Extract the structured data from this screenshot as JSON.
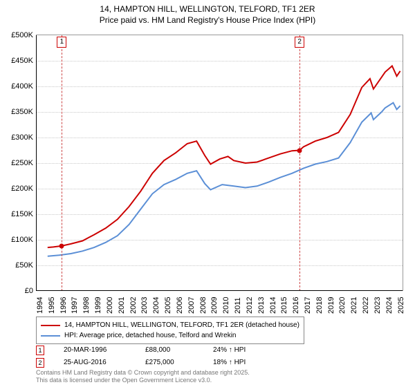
{
  "title_line1": "14, HAMPTON HILL, WELLINGTON, TELFORD, TF1 2ER",
  "title_line2": "Price paid vs. HM Land Registry's House Price Index (HPI)",
  "chart": {
    "type": "line",
    "background_color": "#ffffff",
    "grid_color": "#c8c8c8",
    "axis_color": "#000000",
    "x_years": [
      1994,
      1995,
      1996,
      1997,
      1998,
      1999,
      2000,
      2001,
      2002,
      2003,
      2004,
      2005,
      2006,
      2007,
      2008,
      2009,
      2010,
      2011,
      2012,
      2013,
      2014,
      2015,
      2016,
      2017,
      2018,
      2019,
      2020,
      2021,
      2022,
      2023,
      2024,
      2025
    ],
    "xlim": [
      1994,
      2025.5
    ],
    "ylim": [
      0,
      500000
    ],
    "ytick_step": 50000,
    "ytick_labels": [
      "£0",
      "£50K",
      "£100K",
      "£150K",
      "£200K",
      "£250K",
      "£300K",
      "£350K",
      "£400K",
      "£450K",
      "£500K"
    ],
    "series": [
      {
        "name": "price_paid",
        "color": "#cc0000",
        "width": 2,
        "points": [
          [
            1995.0,
            85000
          ],
          [
            1995.5,
            86000
          ],
          [
            1996.2,
            88000
          ],
          [
            1997,
            92000
          ],
          [
            1998,
            98000
          ],
          [
            1999,
            110000
          ],
          [
            2000,
            123000
          ],
          [
            2001,
            140000
          ],
          [
            2002,
            165000
          ],
          [
            2003,
            195000
          ],
          [
            2004,
            230000
          ],
          [
            2005,
            255000
          ],
          [
            2006,
            270000
          ],
          [
            2007,
            288000
          ],
          [
            2007.8,
            293000
          ],
          [
            2008.5,
            265000
          ],
          [
            2009,
            248000
          ],
          [
            2009.8,
            258000
          ],
          [
            2010.5,
            263000
          ],
          [
            2011,
            255000
          ],
          [
            2012,
            250000
          ],
          [
            2013,
            252000
          ],
          [
            2014,
            260000
          ],
          [
            2015,
            268000
          ],
          [
            2016,
            274000
          ],
          [
            2016.65,
            275000
          ],
          [
            2017,
            282000
          ],
          [
            2018,
            293000
          ],
          [
            2019,
            300000
          ],
          [
            2020,
            310000
          ],
          [
            2021,
            345000
          ],
          [
            2022,
            398000
          ],
          [
            2022.7,
            415000
          ],
          [
            2023,
            395000
          ],
          [
            2023.7,
            418000
          ],
          [
            2024,
            428000
          ],
          [
            2024.6,
            440000
          ],
          [
            2025,
            420000
          ],
          [
            2025.3,
            430000
          ]
        ]
      },
      {
        "name": "hpi",
        "color": "#5b8fd6",
        "width": 2,
        "points": [
          [
            1995.0,
            68000
          ],
          [
            1996,
            70000
          ],
          [
            1997,
            73000
          ],
          [
            1998,
            78000
          ],
          [
            1999,
            85000
          ],
          [
            2000,
            95000
          ],
          [
            2001,
            108000
          ],
          [
            2002,
            130000
          ],
          [
            2003,
            160000
          ],
          [
            2004,
            190000
          ],
          [
            2005,
            208000
          ],
          [
            2006,
            218000
          ],
          [
            2007,
            230000
          ],
          [
            2007.8,
            235000
          ],
          [
            2008.5,
            210000
          ],
          [
            2009,
            198000
          ],
          [
            2010,
            208000
          ],
          [
            2011,
            205000
          ],
          [
            2012,
            202000
          ],
          [
            2013,
            205000
          ],
          [
            2014,
            213000
          ],
          [
            2015,
            222000
          ],
          [
            2016,
            230000
          ],
          [
            2017,
            240000
          ],
          [
            2018,
            248000
          ],
          [
            2019,
            253000
          ],
          [
            2020,
            260000
          ],
          [
            2021,
            290000
          ],
          [
            2022,
            330000
          ],
          [
            2022.8,
            348000
          ],
          [
            2023,
            335000
          ],
          [
            2023.7,
            350000
          ],
          [
            2024,
            358000
          ],
          [
            2024.7,
            368000
          ],
          [
            2025,
            355000
          ],
          [
            2025.3,
            362000
          ]
        ]
      }
    ],
    "markers": [
      {
        "id": "1",
        "x": 1996.22,
        "y": 88000
      },
      {
        "id": "2",
        "x": 2016.65,
        "y": 275000
      }
    ]
  },
  "legend": {
    "items": [
      {
        "color": "#cc0000",
        "label": "14, HAMPTON HILL, WELLINGTON, TELFORD, TF1 2ER (detached house)"
      },
      {
        "color": "#5b8fd6",
        "label": "HPI: Average price, detached house, Telford and Wrekin"
      }
    ]
  },
  "transactions": [
    {
      "id": "1",
      "date": "20-MAR-1996",
      "price": "£88,000",
      "delta": "24% ↑ HPI"
    },
    {
      "id": "2",
      "date": "25-AUG-2016",
      "price": "£275,000",
      "delta": "18% ↑ HPI"
    }
  ],
  "footer_line1": "Contains HM Land Registry data © Crown copyright and database right 2025.",
  "footer_line2": "This data is licensed under the Open Government Licence v3.0."
}
